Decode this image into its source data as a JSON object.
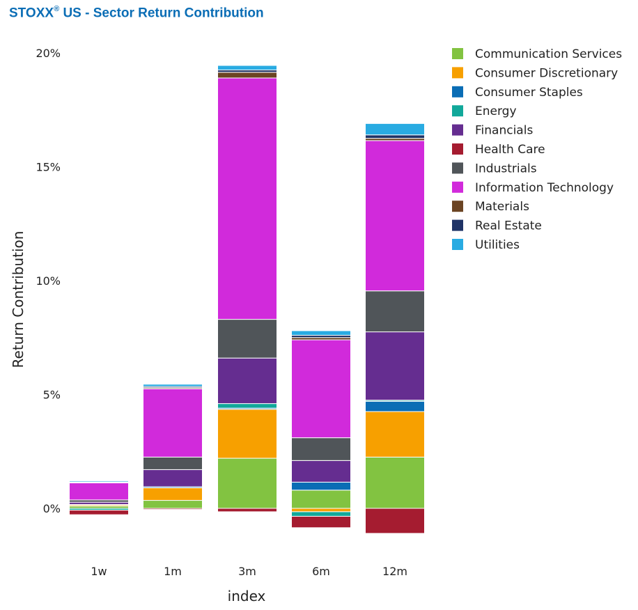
{
  "header": {
    "title_brand": "STOXX",
    "title_reg": "®",
    "title_rest": " US - Sector Return Contribution"
  },
  "chart_data": {
    "type": "bar",
    "stacked": true,
    "title": "STOXX® US - Sector Return Contribution",
    "xlabel": "index",
    "ylabel": "Return Contribution",
    "categories": [
      "1w",
      "1m",
      "3m",
      "6m",
      "12m"
    ],
    "ylim": [
      -2,
      20
    ],
    "yticks": [
      0,
      5,
      10,
      15,
      20
    ],
    "ytick_labels": [
      "0%",
      "5%",
      "10%",
      "15%",
      "20%"
    ],
    "grid": false,
    "legend_position": "right",
    "series": [
      {
        "name": "Communication Services",
        "color": "#82c341",
        "values": [
          0.1,
          0.35,
          2.2,
          0.8,
          2.25
        ]
      },
      {
        "name": "Consumer Discretionary",
        "color": "#f7a000",
        "values": [
          0.05,
          0.55,
          2.15,
          -0.15,
          2.0
        ]
      },
      {
        "name": "Consumer Staples",
        "color": "#0a6db5",
        "values": [
          0.02,
          0.05,
          0.05,
          0.35,
          0.45
        ]
      },
      {
        "name": "Energy",
        "color": "#11a89a",
        "values": [
          -0.08,
          0.0,
          0.2,
          -0.2,
          0.05
        ]
      },
      {
        "name": "Financials",
        "color": "#652d90",
        "values": [
          0.1,
          0.75,
          2.0,
          0.95,
          3.0
        ]
      },
      {
        "name": "Health Care",
        "color": "#a51c30",
        "values": [
          -0.2,
          -0.05,
          -0.15,
          -0.5,
          -1.1
        ]
      },
      {
        "name": "Industrials",
        "color": "#505559",
        "values": [
          0.1,
          0.55,
          1.7,
          1.0,
          1.8
        ]
      },
      {
        "name": "Information Technology",
        "color": "#d12adb",
        "values": [
          0.75,
          3.0,
          10.6,
          4.3,
          6.6
        ]
      },
      {
        "name": "Materials",
        "color": "#6b4423",
        "values": [
          0.02,
          0.05,
          0.25,
          0.1,
          0.1
        ]
      },
      {
        "name": "Real Estate",
        "color": "#1f3366",
        "values": [
          0.02,
          0.05,
          0.1,
          0.1,
          0.15
        ]
      },
      {
        "name": "Utilities",
        "color": "#29abe2",
        "values": [
          0.05,
          0.1,
          0.2,
          0.2,
          0.5
        ]
      }
    ]
  }
}
